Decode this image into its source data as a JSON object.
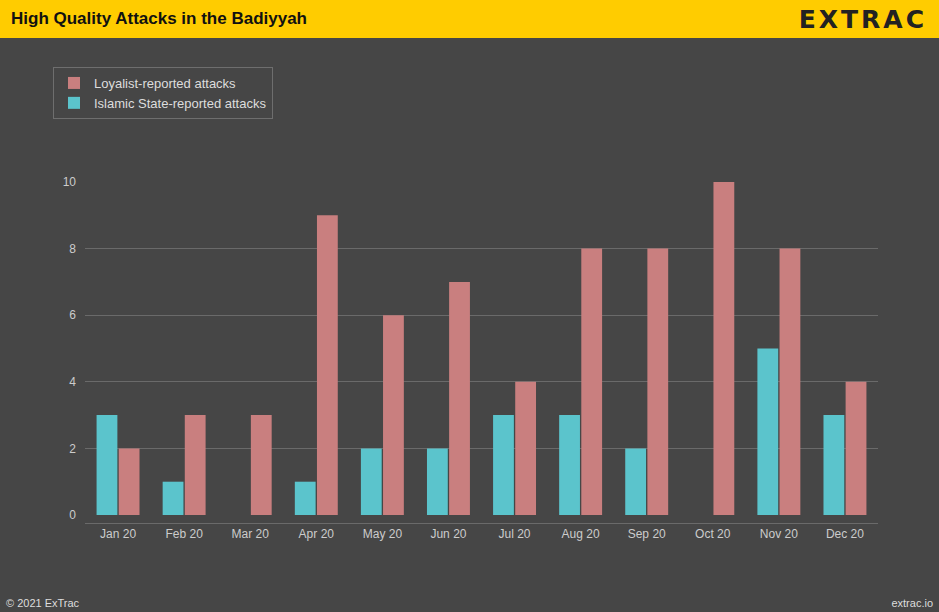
{
  "chart_data": {
    "type": "bar",
    "title": "High Quality Attacks in the Badiyyah",
    "brand": "EXTRAC",
    "footer_left": "© 2021 ExTrac",
    "footer_right": "extrac.io",
    "categories": [
      "Jan 20",
      "Feb 20",
      "Mar 20",
      "Apr 20",
      "May 20",
      "Jun 20",
      "Jul 20",
      "Aug 20",
      "Sep 20",
      "Oct 20",
      "Nov 20",
      "Dec 20"
    ],
    "series": [
      {
        "name": "Islamic State-reported attacks",
        "color": "#5bc4cc",
        "values": [
          3,
          1,
          0,
          1,
          2,
          2,
          3,
          3,
          2,
          0,
          5,
          3
        ]
      },
      {
        "name": "Loyalist-reported attacks",
        "color": "#c97f7f",
        "values": [
          2,
          3,
          3,
          9,
          6,
          7,
          4,
          8,
          8,
          10,
          8,
          4
        ]
      }
    ],
    "ylim": [
      0,
      10
    ],
    "yticks": [
      0,
      2,
      4,
      6,
      8,
      10
    ],
    "grid": true,
    "legend": "top-left"
  }
}
